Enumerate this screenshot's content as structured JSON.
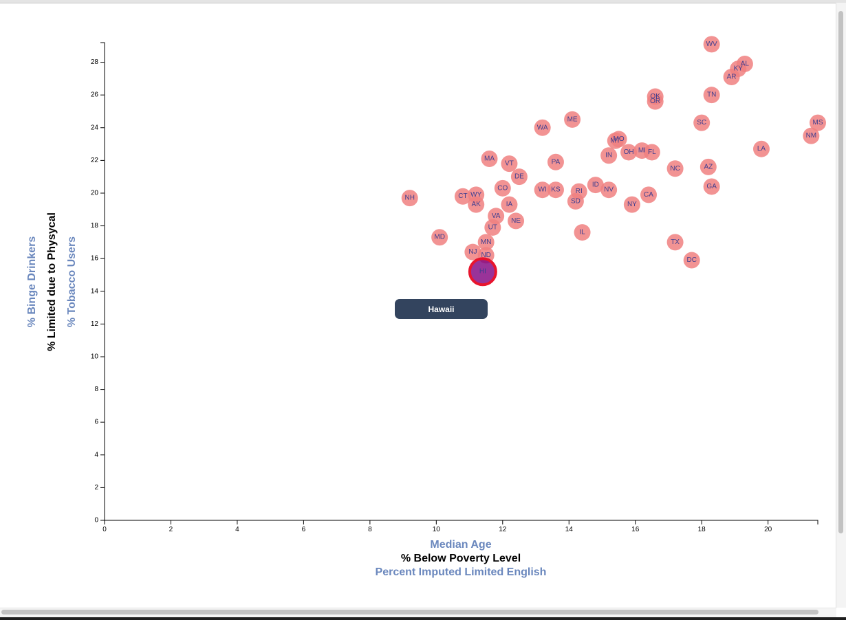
{
  "colors": {
    "circle": "#f08080",
    "highlight_fill": "#800080",
    "highlight_stroke": "#e8152e",
    "state_label": "#3d3d8f",
    "inactive_axis_label": "#6a87bd",
    "active_axis_label": "#000000",
    "tooltip_bg": "#33445e"
  },
  "tooltip": {
    "text": "Hawaii"
  },
  "chart_data": {
    "type": "scatter",
    "x_labels": [
      {
        "text": "Median Age",
        "active": false
      },
      {
        "text": "% Below Poverty Level",
        "active": true
      },
      {
        "text": "Percent Imputed Limited English",
        "active": false
      }
    ],
    "y_labels": [
      {
        "text": "% Binge Drinkers",
        "active": false
      },
      {
        "text": "% Limited due to Physycal",
        "active": true
      },
      {
        "text": "% Tobacco Users",
        "active": false
      }
    ],
    "xlim": [
      0,
      21.5
    ],
    "ylim": [
      0,
      29.2
    ],
    "x_ticks": [
      0,
      2,
      4,
      6,
      8,
      10,
      12,
      14,
      16,
      18,
      20
    ],
    "y_ticks": [
      0,
      2,
      4,
      6,
      8,
      10,
      12,
      14,
      16,
      18,
      20,
      22,
      24,
      26,
      28
    ],
    "highlighted": "HI",
    "points": [
      {
        "label": "WV",
        "x": 18.3,
        "y": 29.1
      },
      {
        "label": "AL",
        "x": 19.3,
        "y": 27.9
      },
      {
        "label": "KY",
        "x": 19.1,
        "y": 27.6
      },
      {
        "label": "AR",
        "x": 18.9,
        "y": 27.1
      },
      {
        "label": "OK",
        "x": 16.6,
        "y": 25.9
      },
      {
        "label": "OR",
        "x": 16.6,
        "y": 25.6
      },
      {
        "label": "TN",
        "x": 18.3,
        "y": 26.0
      },
      {
        "label": "ME",
        "x": 14.1,
        "y": 24.5
      },
      {
        "label": "SC",
        "x": 18.0,
        "y": 24.3
      },
      {
        "label": "MS",
        "x": 21.5,
        "y": 24.3
      },
      {
        "label": "WA",
        "x": 13.2,
        "y": 24.0
      },
      {
        "label": "NM",
        "x": 21.3,
        "y": 23.5
      },
      {
        "label": "MO",
        "x": 15.5,
        "y": 23.3
      },
      {
        "label": "MT",
        "x": 15.4,
        "y": 23.2
      },
      {
        "label": "LA",
        "x": 19.8,
        "y": 22.7
      },
      {
        "label": "MI",
        "x": 16.2,
        "y": 22.6
      },
      {
        "label": "FL",
        "x": 16.5,
        "y": 22.5
      },
      {
        "label": "OH",
        "x": 15.8,
        "y": 22.5
      },
      {
        "label": "IN",
        "x": 15.2,
        "y": 22.3
      },
      {
        "label": "MA",
        "x": 11.6,
        "y": 22.1
      },
      {
        "label": "PA",
        "x": 13.6,
        "y": 21.9
      },
      {
        "label": "VT",
        "x": 12.2,
        "y": 21.8
      },
      {
        "label": "AZ",
        "x": 18.2,
        "y": 21.6
      },
      {
        "label": "NC",
        "x": 17.2,
        "y": 21.5
      },
      {
        "label": "DE",
        "x": 12.5,
        "y": 21.0
      },
      {
        "label": "GA",
        "x": 18.3,
        "y": 20.4
      },
      {
        "label": "ID",
        "x": 14.8,
        "y": 20.5
      },
      {
        "label": "CO",
        "x": 12.0,
        "y": 20.3
      },
      {
        "label": "WI",
        "x": 13.2,
        "y": 20.2
      },
      {
        "label": "KS",
        "x": 13.6,
        "y": 20.2
      },
      {
        "label": "RI",
        "x": 14.3,
        "y": 20.1
      },
      {
        "label": "NV",
        "x": 15.2,
        "y": 20.2
      },
      {
        "label": "CA",
        "x": 16.4,
        "y": 19.9
      },
      {
        "label": "WY",
        "x": 11.2,
        "y": 19.9
      },
      {
        "label": "CT",
        "x": 10.8,
        "y": 19.8
      },
      {
        "label": "NH",
        "x": 9.2,
        "y": 19.7
      },
      {
        "label": "SD",
        "x": 14.2,
        "y": 19.5
      },
      {
        "label": "AK",
        "x": 11.2,
        "y": 19.3
      },
      {
        "label": "IA",
        "x": 12.2,
        "y": 19.3
      },
      {
        "label": "NY",
        "x": 15.9,
        "y": 19.3
      },
      {
        "label": "VA",
        "x": 11.8,
        "y": 18.6
      },
      {
        "label": "NE",
        "x": 12.4,
        "y": 18.3
      },
      {
        "label": "UT",
        "x": 11.7,
        "y": 17.9
      },
      {
        "label": "IL",
        "x": 14.4,
        "y": 17.6
      },
      {
        "label": "MD",
        "x": 10.1,
        "y": 17.3
      },
      {
        "label": "TX",
        "x": 17.2,
        "y": 17.0
      },
      {
        "label": "MN",
        "x": 11.5,
        "y": 17.0
      },
      {
        "label": "NJ",
        "x": 11.1,
        "y": 16.4
      },
      {
        "label": "ND",
        "x": 11.5,
        "y": 16.2
      },
      {
        "label": "DC",
        "x": 17.7,
        "y": 15.9
      },
      {
        "label": "HI",
        "x": 11.4,
        "y": 15.2
      }
    ]
  }
}
